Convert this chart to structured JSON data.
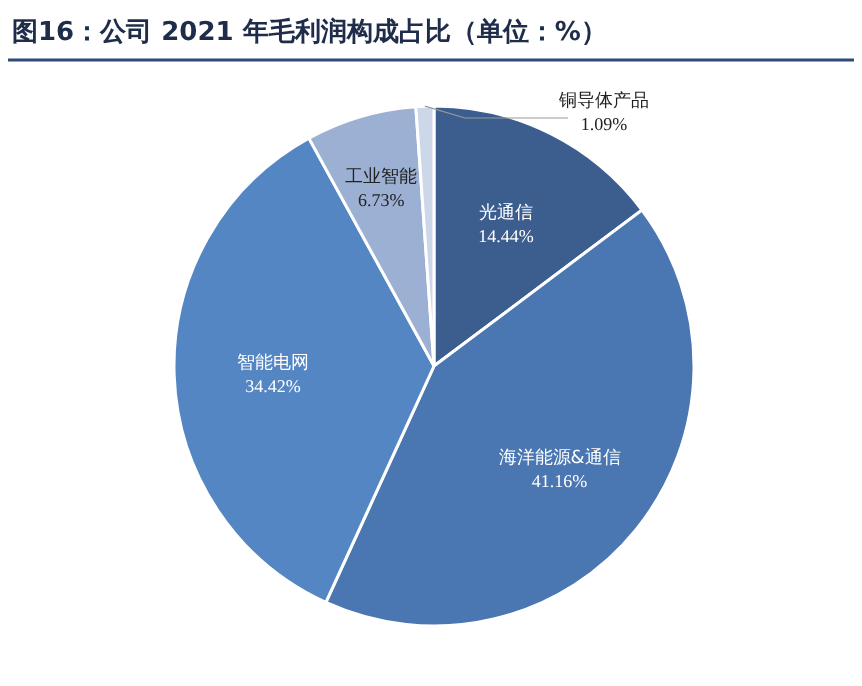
{
  "chart_data": {
    "type": "pie",
    "title": "图16：公司 2021 年毛利润构成占比（单位：%）",
    "categories": [
      "光通信",
      "海洋能源&通信",
      "智能电网",
      "工业智能",
      "铜导体产品"
    ],
    "values": [
      14.44,
      41.16,
      34.42,
      6.73,
      1.09
    ],
    "value_labels": [
      "14.44%",
      "41.16%",
      "34.42%",
      "6.73%",
      "1.09%"
    ],
    "colors": [
      "#3b5e8e",
      "#4a76b1",
      "#5386c3",
      "#9cb0d3",
      "#cdd7ea"
    ]
  }
}
